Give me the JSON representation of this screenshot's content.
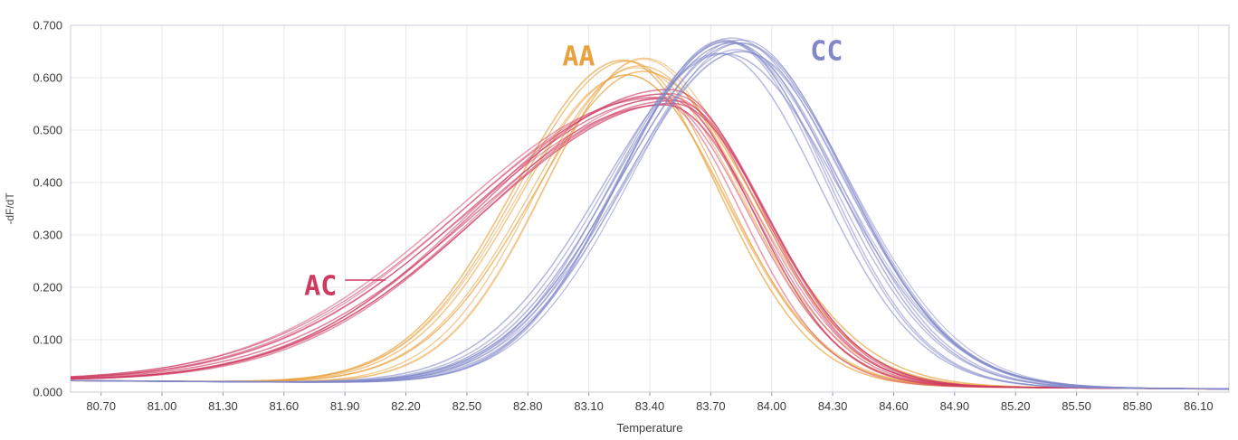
{
  "chart_data": {
    "type": "line",
    "title": "",
    "xlabel": "Temperature",
    "ylabel": "-dF/dT",
    "xlim": [
      80.55,
      86.25
    ],
    "ylim": [
      0.0,
      0.7
    ],
    "x_ticks": [
      "80.70",
      "81.00",
      "81.30",
      "81.60",
      "81.90",
      "82.20",
      "82.50",
      "82.80",
      "83.10",
      "83.40",
      "83.70",
      "84.00",
      "84.30",
      "84.60",
      "84.90",
      "85.20",
      "85.50",
      "85.80",
      "86.10"
    ],
    "y_ticks": [
      "0.000",
      "0.100",
      "0.200",
      "0.300",
      "0.400",
      "0.500",
      "0.600",
      "0.700"
    ],
    "grid": true,
    "grid_color": "#e6e8f0",
    "frame_color": "#c8cdda",
    "tick_mark_color": "#8f94a8",
    "legend_position": "none",
    "series_groups": [
      {
        "name": "AA",
        "color": "#E8A13C",
        "replicates": 9,
        "peak_x": 83.32,
        "peak_y": 0.605,
        "sigma_left": 0.5,
        "sigma_right": 0.5,
        "baseline_left": 0.022,
        "baseline_right": 0.006,
        "jitter_x": 0.06,
        "jitter_y": 0.035,
        "jitter_sigma": 0.08
      },
      {
        "name": "AC",
        "color": "#CE3A60",
        "replicates": 11,
        "peak_x": 83.47,
        "peak_y": 0.548,
        "sigma_left": 0.95,
        "sigma_right": 0.45,
        "baseline_left": 0.022,
        "baseline_right": 0.006,
        "jitter_x": 0.06,
        "jitter_y": 0.03,
        "jitter_sigma": 0.07
      },
      {
        "name": "CC",
        "color": "#8187C8",
        "replicates": 14,
        "peak_x": 83.8,
        "peak_y": 0.648,
        "sigma_left": 0.55,
        "sigma_right": 0.52,
        "baseline_left": 0.022,
        "baseline_right": 0.006,
        "jitter_x": 0.07,
        "jitter_y": 0.03,
        "jitter_sigma": 0.08
      }
    ],
    "annotations": [
      {
        "label": "AA",
        "x": 83.05,
        "y": 0.638,
        "color": "#E8A13C",
        "leader": false
      },
      {
        "label": "CC",
        "x": 84.27,
        "y": 0.648,
        "color": "#8187C8",
        "leader": false
      },
      {
        "label": "AC",
        "x": 81.78,
        "y": 0.2,
        "color": "#CE3A60",
        "leader": true
      }
    ]
  }
}
